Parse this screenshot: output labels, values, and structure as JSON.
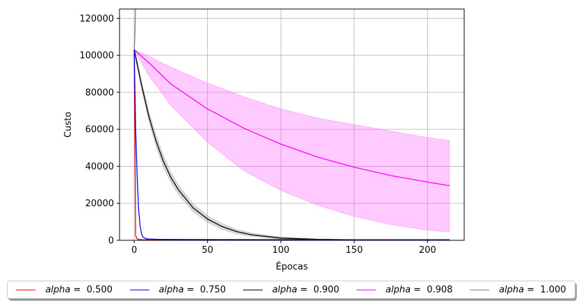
{
  "chart_data": {
    "type": "line",
    "xlabel": "Épocas",
    "ylabel": "Custo",
    "xlim": [
      -10,
      225
    ],
    "ylim": [
      0,
      125000
    ],
    "xticks": [
      0,
      50,
      100,
      150,
      200
    ],
    "yticks": [
      0,
      20000,
      40000,
      60000,
      80000,
      100000,
      120000
    ],
    "xtick_labels": [
      "0",
      "50",
      "100",
      "150",
      "200"
    ],
    "ytick_labels": [
      "0",
      "20000",
      "40000",
      "60000",
      "80000",
      "100000",
      "120000"
    ],
    "grid": true,
    "legend_placement": "bottom",
    "series": [
      {
        "name": "alpha = 0.500",
        "legend_var": "alpha",
        "legend_rest": " =  0.500",
        "color": "#ff0000",
        "x": [
          0,
          1,
          2,
          3,
          5,
          10,
          215
        ],
        "y": [
          103000,
          2500,
          800,
          500,
          350,
          300,
          300
        ]
      },
      {
        "name": "alpha = 0.750",
        "legend_var": "alpha",
        "legend_rest": " =  0.750",
        "color": "#0000ff",
        "x": [
          0,
          1,
          2,
          3,
          4,
          5,
          6,
          8,
          10,
          15,
          20,
          50,
          215
        ],
        "y": [
          103000,
          60000,
          35000,
          17000,
          8000,
          3500,
          1800,
          900,
          700,
          550,
          500,
          400,
          300
        ]
      },
      {
        "name": "alpha = 0.900",
        "legend_var": "alpha",
        "legend_rest": " =  0.900",
        "color": "#000000",
        "band_color": "#999999",
        "x": [
          0,
          5,
          10,
          15,
          20,
          25,
          30,
          40,
          50,
          60,
          70,
          80,
          100,
          125,
          150,
          175,
          215
        ],
        "y": [
          103000,
          84000,
          67000,
          53500,
          42500,
          34000,
          27500,
          17700,
          11500,
          7400,
          4700,
          3000,
          1200,
          500,
          250,
          150,
          100
        ],
        "band_half_width": [
          1500,
          1800,
          2500,
          3000,
          3000,
          2800,
          2500,
          2100,
          1800,
          1500,
          1200,
          900,
          600,
          300,
          150,
          80,
          50
        ]
      },
      {
        "name": "alpha = 0.908",
        "legend_var": "alpha",
        "legend_rest": " =  0.908",
        "color": "#ff00ff",
        "band_color": "#ff66ff",
        "x": [
          0,
          10,
          25,
          50,
          75,
          100,
          125,
          150,
          175,
          200,
          215
        ],
        "y": [
          103000,
          96000,
          84500,
          71000,
          60500,
          52000,
          45000,
          39500,
          35000,
          31500,
          29500
        ],
        "y_low": [
          103000,
          89000,
          73000,
          53000,
          37500,
          27000,
          19000,
          13000,
          8500,
          5500,
          4500
        ],
        "y_high": [
          103000,
          99500,
          93500,
          85000,
          77500,
          71000,
          66000,
          62500,
          59000,
          55500,
          54000
        ]
      },
      {
        "name": "alpha = 1.000",
        "legend_var": "alpha",
        "legend_rest": " =  1.000",
        "color": "#808080",
        "x": [
          0,
          0.25,
          0.5,
          0.75,
          1.0
        ],
        "y": [
          103000,
          106000,
          112000,
          120000,
          130000
        ]
      }
    ]
  }
}
